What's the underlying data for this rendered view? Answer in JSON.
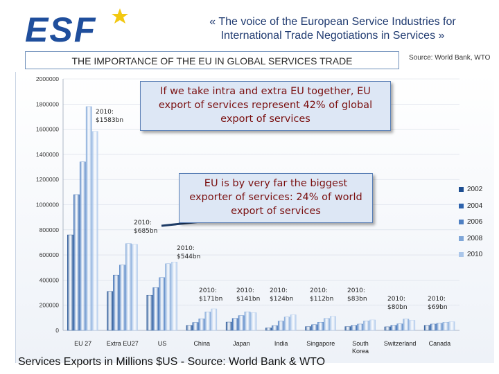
{
  "header": {
    "logo_text": "ESF",
    "tagline_line1": "«  The voice of the European Service Industries for",
    "tagline_line2": "International Trade Negotiations in Services  »",
    "subtitle": "THE IMPORTANCE OF THE EU IN GLOBAL SERVICES TRADE",
    "source_top": "Source: World Bank, WTO"
  },
  "callouts": {
    "callout1": "If we take intra and extra EU together,  EU export of services represent 42% of global export of services",
    "callout2": "EU is by very far the biggest exporter of services: 24% of world export of services"
  },
  "footer": {
    "text": "Services Exports in Millions $US - Source: World Bank & WTO"
  },
  "colors": {
    "accent": "#1f4e9c",
    "series": [
      "#1d4e91",
      "#2e63ad",
      "#4f80c3",
      "#7fa6d8",
      "#aac6ea"
    ]
  },
  "chart_data": {
    "type": "bar",
    "title": "THE IMPORTANCE OF THE EU IN GLOBAL SERVICES TRADE",
    "xlabel": "",
    "ylabel": "Services Exports in Millions $US",
    "ylim": [
      0,
      2000000
    ],
    "yticks": [
      "2000000",
      "1800000",
      "1600000",
      "1400000",
      "1200000",
      "1000000",
      "800000",
      "600000",
      "400000",
      "200000",
      "0"
    ],
    "categories": [
      "EU 27",
      "Extra EU27",
      "US",
      "China",
      "Japan",
      "India",
      "Singapore",
      "South Korea",
      "Switzerland",
      "Canada"
    ],
    "series": [
      {
        "name": "2002",
        "values": [
          760000,
          310000,
          280000,
          40000,
          66000,
          20000,
          30000,
          30000,
          28000,
          40000
        ]
      },
      {
        "name": "2004",
        "values": [
          1080000,
          440000,
          340000,
          63000,
          95000,
          38000,
          45000,
          40000,
          40000,
          50000
        ]
      },
      {
        "name": "2006",
        "values": [
          1340000,
          520000,
          420000,
          92000,
          118000,
          74000,
          65000,
          50000,
          52000,
          57000
        ]
      },
      {
        "name": "2008",
        "values": [
          1780000,
          690000,
          530000,
          147000,
          148000,
          106000,
          95000,
          75000,
          90000,
          65000
        ]
      },
      {
        "name": "2010",
        "values": [
          1583000,
          685000,
          544000,
          171000,
          141000,
          124000,
          112000,
          83000,
          80000,
          69000
        ]
      }
    ],
    "annotations": [
      {
        "category": "EU 27",
        "line1": "2010:",
        "line2": "$1583bn"
      },
      {
        "category": "Extra EU27",
        "line1": "2010:",
        "line2": "$685bn"
      },
      {
        "category": "US",
        "line1": "2010:",
        "line2": "$544bn"
      },
      {
        "category": "China",
        "line1": "2010:",
        "line2": "$171bn"
      },
      {
        "category": "Japan",
        "line1": "2010:",
        "line2": "$141bn"
      },
      {
        "category": "India",
        "line1": "2010:",
        "line2": "$124bn"
      },
      {
        "category": "Singapore",
        "line1": "2010:",
        "line2": "$112bn"
      },
      {
        "category": "South Korea",
        "line1": "2010:",
        "line2": "$83bn"
      },
      {
        "category": "Switzerland",
        "line1": "2010:",
        "line2": "$80bn"
      },
      {
        "category": "Canada",
        "line1": "2010:",
        "line2": "$69bn"
      }
    ],
    "legend": [
      "2002",
      "2004",
      "2006",
      "2008",
      "2010"
    ],
    "legend_position": "right"
  }
}
